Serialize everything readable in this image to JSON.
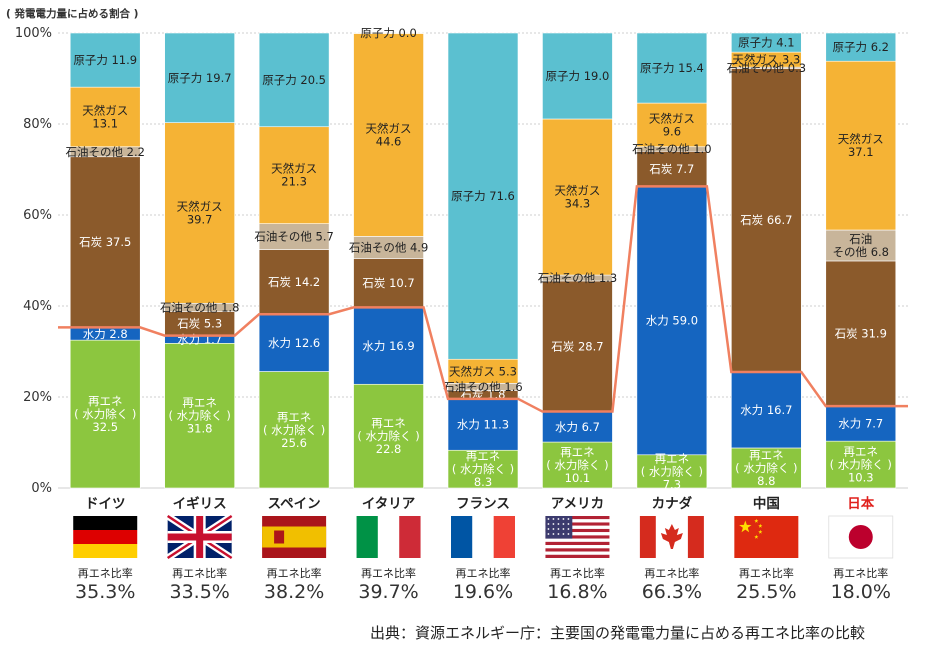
{
  "chart_data": {
    "type": "bar",
    "stacked": true,
    "ylabel": "( 発電電力量に占める割合 )",
    "ylim": [
      0,
      100
    ],
    "yticks": [
      "0%",
      "20%",
      "40%",
      "60%",
      "80%",
      "100%"
    ],
    "source": "出典：資源エネルギー庁：主要国の発電電力量に占める再エネ比率の比較",
    "ratio_label": "再エネ比率",
    "colors": {
      "renew": "#8cc63f",
      "hydro": "#1565c0",
      "coal": "#8b5a2b",
      "oil": "#c8b59a",
      "gas": "#f5b335",
      "nuclear": "#5bc0d0",
      "line": "#f08060"
    },
    "countries": [
      {
        "name": "ドイツ",
        "ratio": "35.3%",
        "ratio_value": 35.3,
        "flag": "de",
        "segments": [
          {
            "type": "renew",
            "value": 32.5,
            "label": "再エネ\n( 水力除く )\n32.5"
          },
          {
            "type": "hydro",
            "value": 2.8,
            "label": "水力 2.8"
          },
          {
            "type": "coal",
            "value": 37.5,
            "label": "石炭 37.5"
          },
          {
            "type": "oil",
            "value": 2.2,
            "label": "石油その他 2.2"
          },
          {
            "type": "gas",
            "value": 13.1,
            "label": "天然ガス\n13.1"
          },
          {
            "type": "nuclear",
            "value": 11.9,
            "label": "原子力 11.9"
          }
        ]
      },
      {
        "name": "イギリス",
        "ratio": "33.5%",
        "ratio_value": 33.5,
        "flag": "uk",
        "segments": [
          {
            "type": "renew",
            "value": 31.8,
            "label": "再エネ\n( 水力除く )\n31.8"
          },
          {
            "type": "hydro",
            "value": 1.7,
            "label": "水力 1.7"
          },
          {
            "type": "coal",
            "value": 5.3,
            "label": "石炭 5.3"
          },
          {
            "type": "oil",
            "value": 1.8,
            "label": "石油その他 1.8"
          },
          {
            "type": "gas",
            "value": 39.7,
            "label": "天然ガス\n39.7"
          },
          {
            "type": "nuclear",
            "value": 19.7,
            "label": "原子力 19.7"
          }
        ]
      },
      {
        "name": "スペイン",
        "ratio": "38.2%",
        "ratio_value": 38.2,
        "flag": "es",
        "segments": [
          {
            "type": "renew",
            "value": 25.6,
            "label": "再エネ\n( 水力除く )\n25.6"
          },
          {
            "type": "hydro",
            "value": 12.6,
            "label": "水力 12.6"
          },
          {
            "type": "coal",
            "value": 14.2,
            "label": "石炭 14.2"
          },
          {
            "type": "oil",
            "value": 5.7,
            "label": "石油その他 5.7"
          },
          {
            "type": "gas",
            "value": 21.3,
            "label": "天然ガス\n21.3"
          },
          {
            "type": "nuclear",
            "value": 20.5,
            "label": "原子力 20.5"
          }
        ]
      },
      {
        "name": "イタリア",
        "ratio": "39.7%",
        "ratio_value": 39.7,
        "flag": "it",
        "segments": [
          {
            "type": "renew",
            "value": 22.8,
            "label": "再エネ\n( 水力除く )\n22.8"
          },
          {
            "type": "hydro",
            "value": 16.9,
            "label": "水力 16.9"
          },
          {
            "type": "coal",
            "value": 10.7,
            "label": "石炭 10.7"
          },
          {
            "type": "oil",
            "value": 4.9,
            "label": "石油その他 4.9"
          },
          {
            "type": "gas",
            "value": 44.6,
            "label": "天然ガス\n44.6"
          },
          {
            "type": "nuclear",
            "value": 0.0,
            "label": "原子力 0.0"
          }
        ]
      },
      {
        "name": "フランス",
        "ratio": "19.6%",
        "ratio_value": 19.6,
        "flag": "fr",
        "segments": [
          {
            "type": "renew",
            "value": 8.3,
            "label": "再エネ\n( 水力除く )\n8.3"
          },
          {
            "type": "hydro",
            "value": 11.3,
            "label": "水力 11.3"
          },
          {
            "type": "coal",
            "value": 1.8,
            "label": "石炭 1.8"
          },
          {
            "type": "oil",
            "value": 1.6,
            "label": "石油その他 1.6"
          },
          {
            "type": "gas",
            "value": 5.3,
            "label": "天然ガス 5.3"
          },
          {
            "type": "nuclear",
            "value": 71.6,
            "label": "原子力 71.6"
          }
        ]
      },
      {
        "name": "アメリカ",
        "ratio": "16.8%",
        "ratio_value": 16.8,
        "flag": "us",
        "segments": [
          {
            "type": "renew",
            "value": 10.1,
            "label": "再エネ\n( 水力除く )\n10.1"
          },
          {
            "type": "hydro",
            "value": 6.7,
            "label": "水力 6.7"
          },
          {
            "type": "coal",
            "value": 28.7,
            "label": "石炭 28.7"
          },
          {
            "type": "oil",
            "value": 1.3,
            "label": "石油その他 1.3"
          },
          {
            "type": "gas",
            "value": 34.3,
            "label": "天然ガス\n34.3"
          },
          {
            "type": "nuclear",
            "value": 19.0,
            "label": "原子力 19.0"
          }
        ]
      },
      {
        "name": "カナダ",
        "ratio": "66.3%",
        "ratio_value": 66.3,
        "flag": "ca",
        "segments": [
          {
            "type": "renew",
            "value": 7.3,
            "label": "再エネ\n( 水力除く )\n7.3"
          },
          {
            "type": "hydro",
            "value": 59.0,
            "label": "水力 59.0"
          },
          {
            "type": "coal",
            "value": 7.7,
            "label": "石炭 7.7"
          },
          {
            "type": "oil",
            "value": 1.0,
            "label": "石油その他 1.0"
          },
          {
            "type": "gas",
            "value": 9.6,
            "label": "天然ガス\n9.6"
          },
          {
            "type": "nuclear",
            "value": 15.4,
            "label": "原子力 15.4"
          }
        ]
      },
      {
        "name": "中国",
        "ratio": "25.5%",
        "ratio_value": 25.5,
        "flag": "cn",
        "segments": [
          {
            "type": "renew",
            "value": 8.8,
            "label": "再エネ\n( 水力除く )\n8.8"
          },
          {
            "type": "hydro",
            "value": 16.7,
            "label": "水力 16.7"
          },
          {
            "type": "coal",
            "value": 66.7,
            "label": "石炭 66.7"
          },
          {
            "type": "oil",
            "value": 0.3,
            "label": "石油その他 0.3"
          },
          {
            "type": "gas",
            "value": 3.3,
            "label": "天然ガス 3.3"
          },
          {
            "type": "nuclear",
            "value": 4.1,
            "label": "原子力 4.1"
          }
        ]
      },
      {
        "name": "日本",
        "ratio": "18.0%",
        "ratio_value": 18.0,
        "flag": "jp",
        "highlight": true,
        "segments": [
          {
            "type": "renew",
            "value": 10.3,
            "label": "再エネ\n( 水力除く )\n10.3"
          },
          {
            "type": "hydro",
            "value": 7.7,
            "label": "水力 7.7"
          },
          {
            "type": "coal",
            "value": 31.9,
            "label": "石炭 31.9"
          },
          {
            "type": "oil",
            "value": 6.8,
            "label": "石油\nその他 6.8"
          },
          {
            "type": "gas",
            "value": 37.1,
            "label": "天然ガス\n37.1"
          },
          {
            "type": "nuclear",
            "value": 6.2,
            "label": "原子力 6.2"
          }
        ]
      }
    ]
  }
}
